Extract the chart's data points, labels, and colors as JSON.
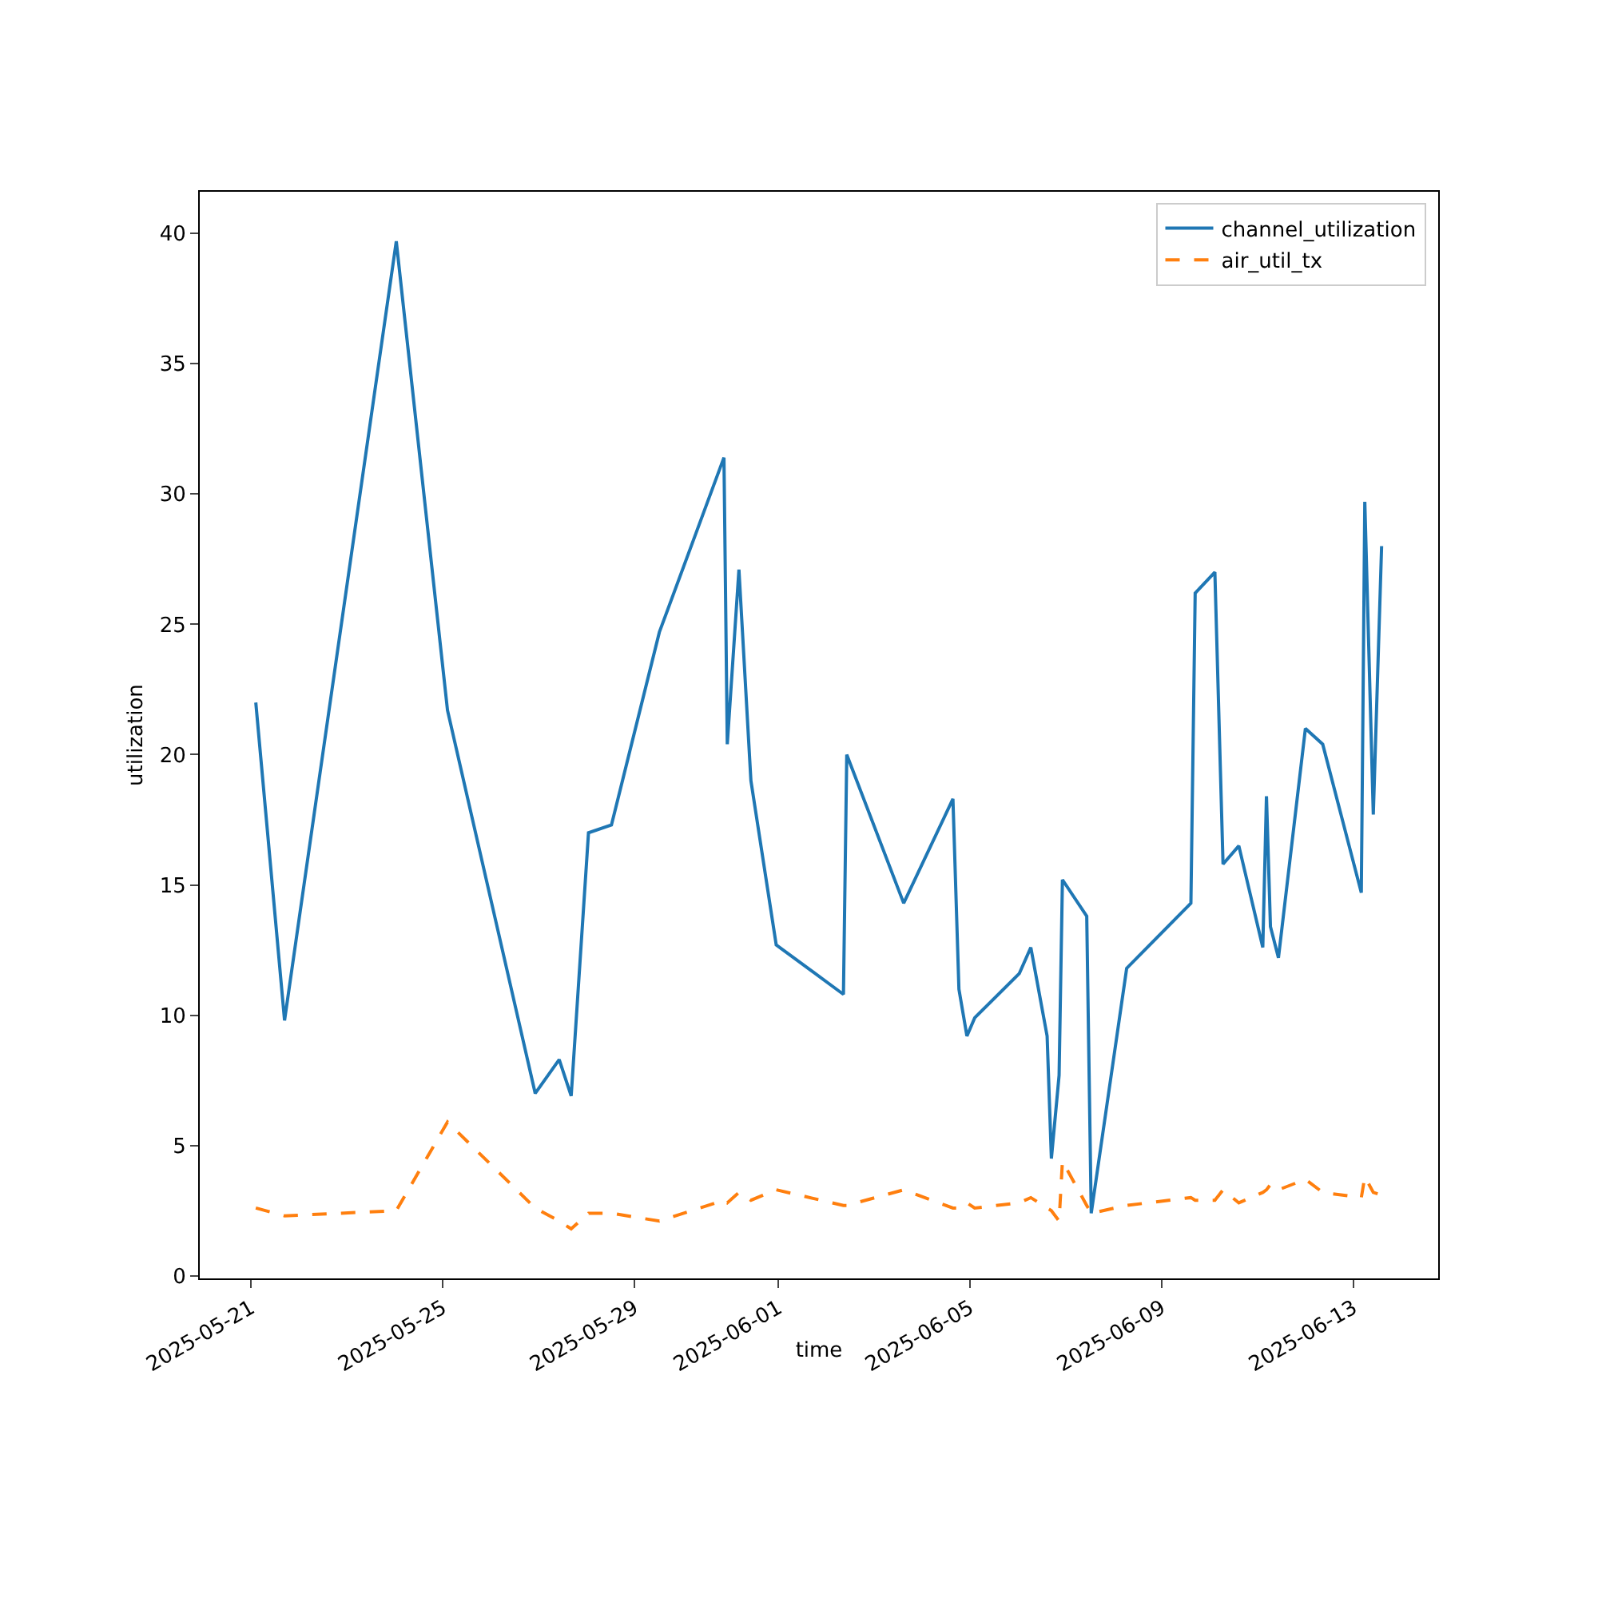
{
  "chart_data": {
    "type": "line",
    "xlabel": "time",
    "ylabel": "utilization",
    "x": [
      "2025-05-21T02:24",
      "2025-05-21T16:48",
      "2025-05-24T00:45",
      "2025-05-25T02:24",
      "2025-05-26T22:20",
      "2025-05-27T10:20",
      "2025-05-27T16:20",
      "2025-05-28T01:00",
      "2025-05-28T12:30",
      "2025-05-29T12:30",
      "2025-05-30T20:50",
      "2025-05-30T22:30",
      "2025-05-31T04:20",
      "2025-05-31T10:20",
      "2025-05-31T23:00",
      "2025-06-02T08:40",
      "2025-06-02T10:20",
      "2025-06-03T14:50",
      "2025-06-04T15:30",
      "2025-06-04T18:30",
      "2025-06-04T22:30",
      "2025-06-05T02:24",
      "2025-06-06T00:45",
      "2025-06-06T06:30",
      "2025-06-06T14:40",
      "2025-06-06T16:48",
      "2025-06-06T20:40",
      "2025-06-06T22:20",
      "2025-06-07T10:30",
      "2025-06-07T12:45",
      "2025-06-08T06:30",
      "2025-06-09T14:40",
      "2025-06-09T16:48",
      "2025-06-10T02:40",
      "2025-06-10T06:45",
      "2025-06-10T14:40",
      "2025-06-11T02:40",
      "2025-06-11T04:30",
      "2025-06-11T06:30",
      "2025-06-11T10:30",
      "2025-06-12T00:00",
      "2025-06-12T08:40",
      "2025-06-13T04:00",
      "2025-06-13T05:45",
      "2025-06-13T10:00",
      "2025-06-13T14:10"
    ],
    "series": [
      {
        "name": "channel_utilization",
        "color": "#1f77b4",
        "line_style": "solid",
        "values": [
          22.0,
          9.8,
          39.7,
          21.7,
          7.0,
          8.3,
          6.9,
          17.0,
          17.3,
          24.7,
          31.4,
          20.4,
          27.1,
          19.0,
          12.7,
          10.8,
          20.0,
          14.3,
          18.3,
          11.0,
          9.2,
          9.9,
          11.6,
          12.6,
          9.2,
          4.5,
          7.7,
          15.2,
          13.8,
          2.4,
          11.8,
          14.3,
          26.2,
          27.0,
          15.8,
          16.5,
          12.6,
          18.4,
          13.4,
          12.2,
          21.0,
          20.4,
          14.7,
          29.7,
          17.7,
          28.0
        ]
      },
      {
        "name": "air_util_tx",
        "color": "#ff7f0e",
        "line_style": "dashed",
        "values": [
          2.6,
          2.3,
          2.5,
          5.9,
          2.6,
          2.1,
          1.8,
          2.4,
          2.4,
          2.1,
          2.9,
          2.8,
          3.2,
          2.9,
          3.3,
          2.7,
          2.7,
          3.3,
          2.6,
          2.6,
          2.8,
          2.6,
          2.8,
          3.0,
          2.6,
          2.5,
          2.1,
          4.4,
          2.7,
          2.4,
          2.7,
          3.0,
          2.9,
          2.9,
          3.3,
          2.8,
          3.2,
          3.3,
          3.5,
          3.3,
          3.7,
          3.2,
          3.0,
          3.8,
          3.2,
          3.1
        ]
      }
    ],
    "xlim": [
      "2025-05-19T22:20",
      "2025-06-14T18:30"
    ],
    "xticks": [
      "2025-05-21",
      "2025-05-25",
      "2025-05-29",
      "2025-06-01",
      "2025-06-05",
      "2025-06-09",
      "2025-06-13"
    ],
    "ylim": [
      -0.1,
      41.6
    ],
    "yticks": [
      0,
      5,
      10,
      15,
      20,
      25,
      30,
      35,
      40
    ],
    "grid": false,
    "legend": "top right",
    "marker": "none"
  }
}
